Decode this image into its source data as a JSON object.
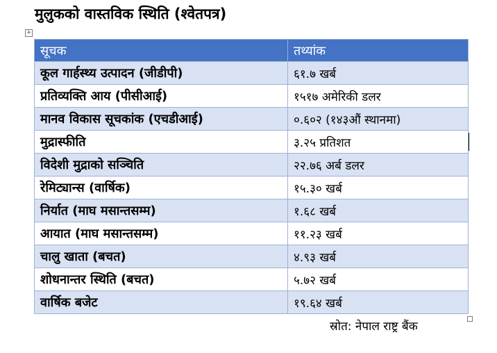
{
  "title": "मुलुकको वास्तविक स्थिति (श्वेतपत्र)",
  "table": {
    "headers": [
      "सूचक",
      "तथ्यांक"
    ],
    "rows": [
      {
        "metric": "कूल गार्हस्थ्य उत्पादन (जीडीपी)",
        "value": "६१.७ खर्ब"
      },
      {
        "metric": "प्रतिव्यक्ति आय (पीसीआई)",
        "value": "१५१७ अमेरिकी डलर"
      },
      {
        "metric": "मानव विकास सूचकांक (एचडीआई)",
        "value": "०.६०२ (१४३औं स्थानमा)"
      },
      {
        "metric": "मुद्रास्फीति",
        "value": "३.२५ प्रतिशत"
      },
      {
        "metric": "विदेशी मुद्राको सञ्चिति",
        "value": "२२.७६ अर्ब डलर"
      },
      {
        "metric": "रेमिट्यान्स (वार्षिक)",
        "value": "१५.३० खर्ब"
      },
      {
        "metric": "निर्यात (माघ मसान्तसम्म)",
        "value": "१.६८ खर्ब"
      },
      {
        "metric": "आयात (माघ मसान्तसम्म)",
        "value": "११.२३ खर्ब"
      },
      {
        "metric": "चालु खाता (बचत)",
        "value": "४.९३ खर्ब"
      },
      {
        "metric": "शोधनान्तर स्थिति (बचत)",
        "value": "५.७२ खर्ब"
      },
      {
        "metric": "वार्षिक बजेट",
        "value": "१९.६४ खर्ब"
      }
    ]
  },
  "source": "स्रोत: नेपाल राष्ट्र बैंक",
  "colors": {
    "header_bg": "#4472c4",
    "band_bg": "#d9e2f3",
    "border": "#9bb1d8"
  }
}
